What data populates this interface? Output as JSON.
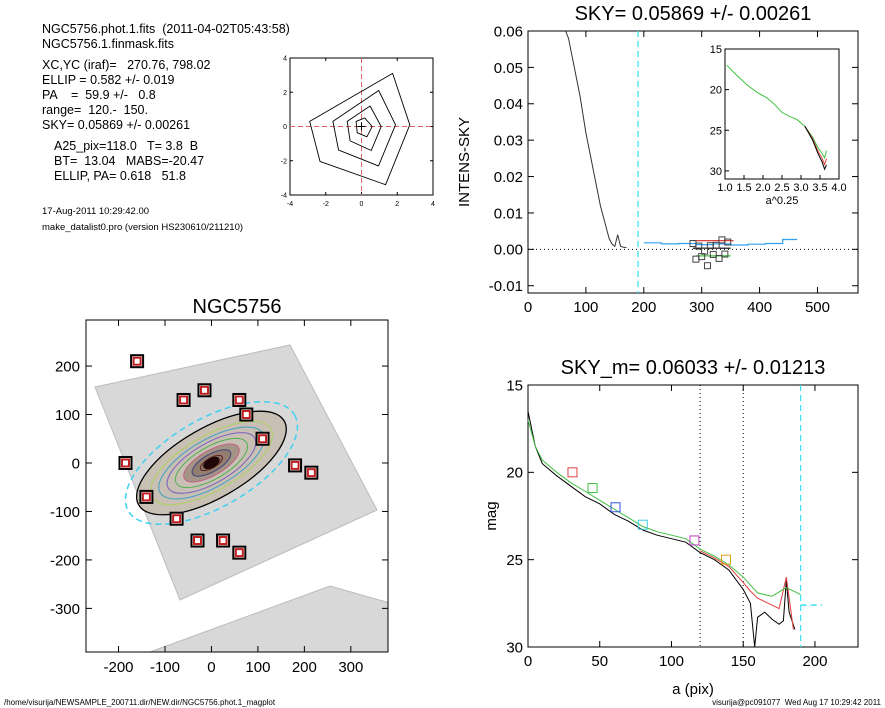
{
  "info": {
    "line1": "NGC5756.phot.1.fits  (2011-04-02T05:43:58)",
    "line2": "NGC5756.1.finmask.fits",
    "xcyc": "XC,YC (iraf)=   270.76, 798.02",
    "ellip": "ELLIP = 0.582 +/- 0.019",
    "pa": "PA    =  59.9 +/-   0.8",
    "range": "range=  120.-  150.",
    "sky": "SKY= 0.05869 +/- 0.00261",
    "a25": "A25_pix=118.0   T= 3.8  B",
    "bt": "BT=  13.04   MABS=-20.47",
    "ellip_pa": "ELLIP, PA= 0.618   51.8",
    "date": "17-Aug-2011 10:29:42.00",
    "program": "make_datalist0.pro (version HS230610/211210)"
  },
  "footer": {
    "path": "/home/visurija/NEWSAMPLE_200711.dir/NEW.dir/NGC5756.phot.1_magplot",
    "user": "visurija@pc091077  Wed Aug 17 10:29:42 2011"
  },
  "chart_data": [
    {
      "id": "contour",
      "type": "line",
      "title": "",
      "xlim": [
        -4,
        4
      ],
      "ylim": [
        -4,
        4
      ],
      "xticks": [
        "-4",
        "-2",
        "0",
        "2",
        "4"
      ],
      "yticks": [
        "-4",
        "-2",
        "0",
        "2",
        "4"
      ],
      "center_lines_color": "#e06060"
    },
    {
      "id": "sky",
      "type": "line",
      "title": "SKY= 0.05869 +/- 0.00261",
      "xlabel": "",
      "ylabel": "INTENS-SKY",
      "xlim": [
        0,
        570
      ],
      "ylim": [
        -0.012,
        0.06
      ],
      "xticks": [
        "0",
        "100",
        "200",
        "300",
        "400",
        "500"
      ],
      "yticks": [
        "-0.01",
        "0.00",
        "0.01",
        "0.02",
        "0.03",
        "0.04",
        "0.05",
        "0.06"
      ],
      "vline_x": 190,
      "vline_color": "#40e0f0",
      "profile": {
        "x": [
          65,
          70,
          75,
          80,
          85,
          90,
          95,
          100,
          105,
          110,
          115,
          120,
          125,
          130,
          135,
          140,
          145,
          150,
          155,
          160,
          165,
          170
        ],
        "y": [
          0.06,
          0.058,
          0.054,
          0.05,
          0.046,
          0.042,
          0.037,
          0.032,
          0.028,
          0.024,
          0.02,
          0.016,
          0.012,
          0.009,
          0.006,
          0.003,
          0.0015,
          0.0008,
          0.004,
          0.0008,
          0.0006,
          0.0005
        ]
      },
      "sky_series": [
        {
          "color": "#30a0f0",
          "x": [
            200,
            230,
            230,
            260,
            260,
            290,
            290,
            320,
            320,
            350,
            350,
            380,
            380,
            410,
            410,
            440,
            440,
            465
          ],
          "y": [
            0.0018,
            0.0018,
            0.0015,
            0.0015,
            0.0016,
            0.0016,
            0.0013,
            0.0013,
            0.0015,
            0.0015,
            0.0012,
            0.0012,
            0.0014,
            0.0014,
            0.0016,
            0.0016,
            0.0027,
            0.0027
          ]
        },
        {
          "color": "#40c040",
          "x": [
            290,
            350
          ],
          "y": [
            -0.0018,
            -0.0018
          ]
        },
        {
          "color": "#e04040",
          "x": [
            285,
            355
          ],
          "y": [
            0.0024,
            0.0024
          ]
        },
        {
          "color": "#000000",
          "x": [
            285,
            350
          ],
          "y": [
            0.0003,
            0.0003
          ]
        }
      ],
      "sky_boxes": {
        "x": [
          285,
          295,
          305,
          315,
          325,
          335,
          345,
          290,
          300,
          310,
          320,
          330,
          340
        ],
        "y": [
          0.0016,
          0.0009,
          -0.0005,
          0.001,
          0.0011,
          0.0026,
          0.002,
          -0.0027,
          -0.002,
          -0.0045,
          -0.0014,
          -0.0025,
          -0.0013
        ]
      }
    },
    {
      "id": "inset",
      "type": "line",
      "title": "",
      "xlabel": "a^0.25",
      "xlim": [
        1.0,
        4.0
      ],
      "ylim": [
        15,
        31
      ],
      "xticks": [
        "1.0",
        "1.5",
        "2.0",
        "2.5",
        "3.0",
        "3.5",
        "4.0"
      ],
      "yticks": [
        "15",
        "20",
        "25",
        "30"
      ],
      "profile": {
        "x": [
          1.05,
          1.3,
          1.6,
          1.9,
          2.1,
          2.3,
          2.5,
          2.7,
          2.9,
          3.1,
          3.3,
          3.45,
          3.55,
          3.62,
          3.67
        ],
        "y": [
          17.0,
          18.2,
          19.5,
          20.5,
          21.0,
          21.8,
          22.8,
          23.3,
          23.7,
          24.5,
          25.8,
          27.2,
          27.8,
          28.4,
          27.5
        ]
      }
    },
    {
      "id": "galaxy",
      "type": "scatter",
      "title": "NGC5756",
      "xlim": [
        -270,
        380
      ],
      "ylim": [
        -390,
        295
      ],
      "xticks": [
        "-200",
        "-100",
        "0",
        "100",
        "200",
        "300"
      ],
      "yticks": [
        "200",
        "100",
        "0",
        "-100",
        "-200",
        "-300"
      ],
      "markers": {
        "x": [
          -30,
          -160,
          -15,
          60,
          75,
          -60,
          60,
          110,
          180,
          215,
          -185,
          -140,
          -75,
          25
        ],
        "y": [
          -160,
          210,
          150,
          130,
          100,
          130,
          -185,
          50,
          -5,
          -20,
          0,
          -70,
          -115,
          -160
        ]
      }
    },
    {
      "id": "mag",
      "type": "line",
      "title": "SKY_m=  0.06033 +/- 0.01213",
      "xlabel": "a (pix)",
      "ylabel": "mag",
      "xlim": [
        0,
        230
      ],
      "ylim": [
        15,
        30
      ],
      "xticks": [
        "0",
        "50",
        "100",
        "150",
        "200"
      ],
      "yticks": [
        "15",
        "20",
        "25",
        "30"
      ],
      "dotted_lines": [
        120,
        150
      ],
      "dashed_line": 190,
      "sky_level": 27.6,
      "series": [
        {
          "color": "#000000",
          "x": [
            0,
            5,
            10,
            20,
            30,
            40,
            50,
            60,
            70,
            80,
            90,
            100,
            110,
            120,
            130,
            140,
            150,
            155,
            158,
            160,
            165,
            170,
            175,
            178,
            180,
            182,
            184,
            186
          ],
          "y": [
            16.5,
            18.5,
            19.5,
            20.2,
            20.8,
            21.4,
            21.8,
            22.4,
            22.8,
            23.3,
            23.6,
            23.8,
            24.0,
            24.6,
            25.0,
            25.6,
            26.7,
            27.5,
            30.0,
            28.3,
            28.0,
            28.4,
            28.7,
            28.5,
            26.2,
            28.0,
            28.5,
            29.0
          ]
        },
        {
          "color": "#e04040",
          "x": [
            120,
            130,
            140,
            150,
            155,
            160,
            165,
            170,
            175,
            180,
            185
          ],
          "y": [
            24.5,
            24.9,
            25.4,
            26.3,
            26.8,
            27.2,
            27.4,
            27.6,
            27.8,
            26.0,
            29.0
          ]
        },
        {
          "color": "#40c040",
          "x": [
            0,
            5,
            10,
            20,
            30,
            40,
            50,
            60,
            70,
            80,
            90,
            100,
            110,
            120,
            130,
            140,
            150,
            160,
            170,
            180,
            190
          ],
          "y": [
            17.0,
            18.5,
            19.3,
            20.0,
            20.6,
            21.1,
            21.6,
            22.1,
            22.6,
            23.1,
            23.4,
            23.6,
            23.8,
            24.4,
            24.8,
            25.3,
            26.0,
            26.9,
            27.1,
            26.6,
            27.0
          ]
        }
      ],
      "boxes": [
        {
          "x": 31,
          "y": 20.0,
          "color": "#e04040"
        },
        {
          "x": 45,
          "y": 20.9,
          "color": "#40c040"
        },
        {
          "x": 61,
          "y": 22.0,
          "color": "#3050e0"
        },
        {
          "x": 80,
          "y": 23.0,
          "color": "#40d0e0"
        },
        {
          "x": 116,
          "y": 23.9,
          "color": "#c040c0"
        },
        {
          "x": 138,
          "y": 25.0,
          "color": "#e0a020"
        }
      ]
    }
  ]
}
